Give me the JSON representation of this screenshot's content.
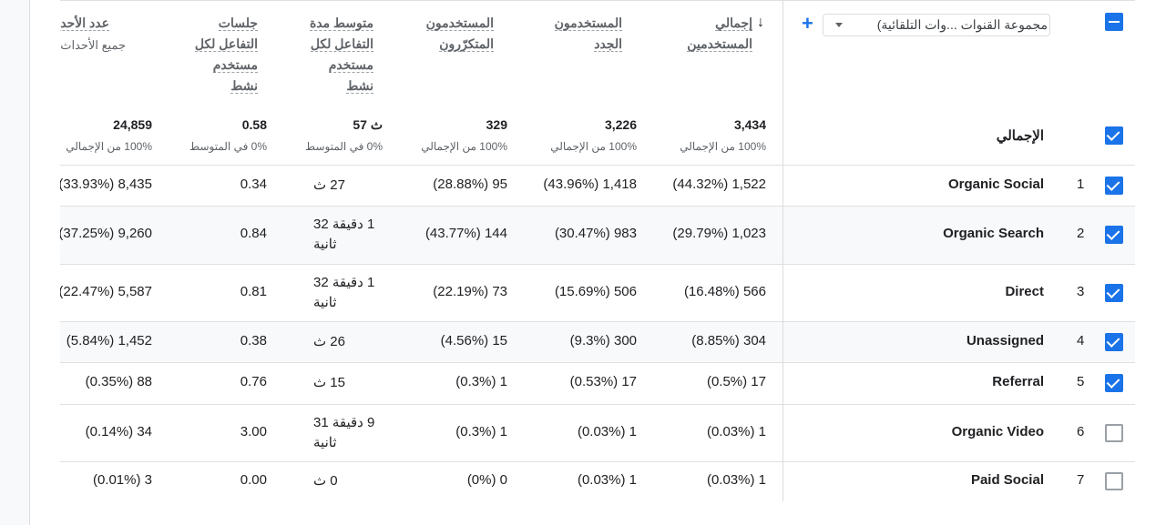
{
  "toolbar": {
    "dimension_label": "مجموعة القنوات ...وات التلقائية)",
    "add_symbol": "+"
  },
  "headers": {
    "total_users": [
      "إجمالي",
      "المستخدمين"
    ],
    "new_users": [
      "المستخدمون",
      "الجدد"
    ],
    "returning_users": [
      "المستخدمون",
      "المتكرّرون"
    ],
    "avg_engagement": [
      "متوسط مدة",
      "التفاعل لكل",
      "مستخدم",
      "نشط"
    ],
    "engaged_sessions": [
      "جلسات",
      "التفاعل لكل",
      "مستخدم",
      "نشط"
    ],
    "event_count": "عدد الأحداث",
    "event_count_sub": "جميع الأحداث"
  },
  "totals": {
    "label": "الإجمالي",
    "total_users": {
      "value": "3,434",
      "note": "100% من الإجمالي"
    },
    "new_users": {
      "value": "3,226",
      "note": "100% من الإجمالي"
    },
    "returning_users": {
      "value": "329",
      "note": "100% من الإجمالي"
    },
    "avg_engagement": {
      "value": "57 ث",
      "note": "0% في المتوسط"
    },
    "engaged_sessions": {
      "value": "0.58",
      "note": "0% في المتوسط"
    },
    "event_count": {
      "value": "24,859",
      "note": "100% من الإجمالي"
    }
  },
  "rows": [
    {
      "index": "1",
      "channel": "Organic Social",
      "checked": true,
      "total_users": "1,522",
      "total_users_pct": "(44.32%)",
      "new_users": "1,418",
      "new_users_pct": "(43.96%)",
      "returning_users": "95",
      "returning_users_pct": "(28.88%)",
      "avg_engagement": "27 ث",
      "engaged_sessions": "0.34",
      "event_count": "8,435",
      "event_count_pct": "(33.93%)"
    },
    {
      "index": "2",
      "channel": "Organic Search",
      "checked": true,
      "total_users": "1,023",
      "total_users_pct": "(29.79%)",
      "new_users": "983",
      "new_users_pct": "(30.47%)",
      "returning_users": "144",
      "returning_users_pct": "(43.77%)",
      "avg_engagement": "1 دقيقة 32 ثانية",
      "engaged_sessions": "0.84",
      "event_count": "9,260",
      "event_count_pct": "(37.25%)"
    },
    {
      "index": "3",
      "channel": "Direct",
      "checked": true,
      "total_users": "566",
      "total_users_pct": "(16.48%)",
      "new_users": "506",
      "new_users_pct": "(15.69%)",
      "returning_users": "73",
      "returning_users_pct": "(22.19%)",
      "avg_engagement": "1 دقيقة 32 ثانية",
      "engaged_sessions": "0.81",
      "event_count": "5,587",
      "event_count_pct": "(22.47%)"
    },
    {
      "index": "4",
      "channel": "Unassigned",
      "checked": true,
      "total_users": "304",
      "total_users_pct": "(8.85%)",
      "new_users": "300",
      "new_users_pct": "(9.3%)",
      "returning_users": "15",
      "returning_users_pct": "(4.56%)",
      "avg_engagement": "26 ث",
      "engaged_sessions": "0.38",
      "event_count": "1,452",
      "event_count_pct": "(5.84%)"
    },
    {
      "index": "5",
      "channel": "Referral",
      "checked": true,
      "total_users": "17",
      "total_users_pct": "(0.5%)",
      "new_users": "17",
      "new_users_pct": "(0.53%)",
      "returning_users": "1",
      "returning_users_pct": "(0.3%)",
      "avg_engagement": "15 ث",
      "engaged_sessions": "0.76",
      "event_count": "88",
      "event_count_pct": "(0.35%)"
    },
    {
      "index": "6",
      "channel": "Organic Video",
      "checked": false,
      "total_users": "1",
      "total_users_pct": "(0.03%)",
      "new_users": "1",
      "new_users_pct": "(0.03%)",
      "returning_users": "1",
      "returning_users_pct": "(0.3%)",
      "avg_engagement": "9 دقيقة 31 ثانية",
      "engaged_sessions": "3.00",
      "event_count": "34",
      "event_count_pct": "(0.14%)"
    },
    {
      "index": "7",
      "channel": "Paid Social",
      "checked": false,
      "total_users": "1",
      "total_users_pct": "(0.03%)",
      "new_users": "1",
      "new_users_pct": "(0.03%)",
      "returning_users": "0",
      "returning_users_pct": "(0%)",
      "avg_engagement": "0 ث",
      "engaged_sessions": "0.00",
      "event_count": "3",
      "event_count_pct": "(0.01%)"
    }
  ],
  "colors": {
    "accent": "#1a73e8",
    "row_alt": "#f8f9fa",
    "divider": "#e0e0e0"
  }
}
